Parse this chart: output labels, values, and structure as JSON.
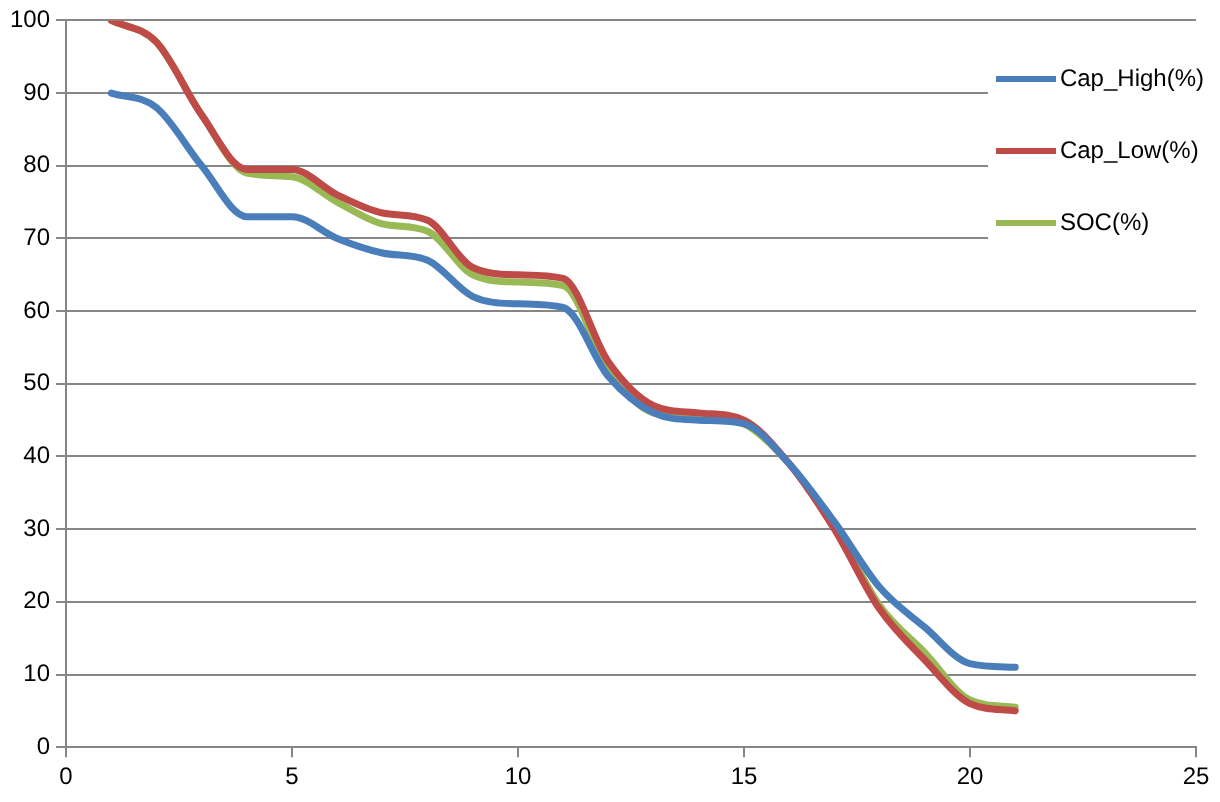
{
  "chart_data": {
    "type": "line",
    "x": [
      1,
      2,
      3,
      4,
      5,
      6,
      7,
      8,
      9,
      10,
      11,
      12,
      13,
      14,
      15,
      16,
      17,
      18,
      19,
      20,
      21
    ],
    "series": [
      {
        "name": "Cap_High(%)",
        "color": "#4a7ebb",
        "values": [
          90,
          88,
          80,
          73,
          73,
          70,
          68,
          67,
          62,
          61,
          60.5,
          51,
          46,
          45,
          44.5,
          39,
          31,
          22,
          16.5,
          11.5,
          11
        ]
      },
      {
        "name": "Cap_Low(%)",
        "color": "#be4b48",
        "values": [
          100,
          97,
          87,
          79.5,
          79.5,
          76,
          73.5,
          72.5,
          66,
          65,
          64.5,
          53,
          47,
          46,
          45,
          39,
          30,
          19,
          12,
          6,
          5
        ]
      },
      {
        "name": "SOC(%)",
        "color": "#98b954",
        "values": [
          100,
          97,
          87,
          79,
          78.5,
          75,
          72,
          71,
          65,
          64,
          63.5,
          52,
          46,
          45.5,
          44.5,
          39,
          30.5,
          19.5,
          13,
          6.5,
          5.5
        ]
      }
    ],
    "xlim": [
      0,
      25
    ],
    "xticks": [
      0,
      5,
      10,
      15,
      20,
      25
    ],
    "ylim": [
      0,
      100
    ],
    "yticks": [
      0,
      10,
      20,
      30,
      40,
      50,
      60,
      70,
      80,
      90,
      100
    ],
    "grid": "y",
    "legend": "top right",
    "marker": "none",
    "line_style": "solid"
  }
}
